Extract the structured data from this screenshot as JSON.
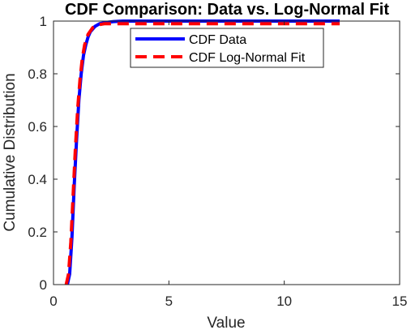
{
  "chart_data": {
    "type": "line",
    "title": "CDF Comparison: Data vs. Log-Normal Fit",
    "xlabel": "Value",
    "ylabel": "Cumulative Distribution",
    "xlim": [
      0,
      15
    ],
    "ylim": [
      0,
      1
    ],
    "xticks": [
      0,
      5,
      10,
      15
    ],
    "yticks": [
      0,
      0.2,
      0.4,
      0.6,
      0.8,
      1
    ],
    "x_tick_labels": [
      "0",
      "5",
      "10",
      "15"
    ],
    "y_tick_labels": [
      "0",
      "0.2",
      "0.4",
      "0.6",
      "0.8",
      "1"
    ],
    "grid": false,
    "legend_position": "top",
    "series": [
      {
        "name": "CDF Data",
        "color": "#0000ff",
        "style": "solid",
        "x": [
          0.6,
          0.7,
          0.8,
          0.9,
          1.0,
          1.1,
          1.2,
          1.3,
          1.4,
          1.5,
          1.6,
          1.8,
          2.0,
          2.3,
          2.6,
          3.0,
          3.5,
          4.0,
          5.0,
          6.0,
          7.0,
          8.0,
          9.0,
          10.0,
          11.0,
          12.0,
          12.4
        ],
        "y": [
          0.0,
          0.04,
          0.18,
          0.38,
          0.55,
          0.7,
          0.8,
          0.87,
          0.91,
          0.94,
          0.96,
          0.98,
          0.99,
          0.995,
          0.998,
          1.0,
          1.0,
          1.0,
          1.0,
          1.0,
          1.0,
          1.0,
          1.0,
          1.0,
          1.0,
          1.0,
          1.0
        ]
      },
      {
        "name": "CDF Log-Normal Fit",
        "color": "#ff0000",
        "style": "dashed",
        "x": [
          0.55,
          0.65,
          0.75,
          0.85,
          0.95,
          1.05,
          1.15,
          1.25,
          1.35,
          1.5,
          1.7,
          1.9,
          2.2,
          2.5,
          3.0,
          3.5,
          4.0,
          5.0,
          6.0,
          7.0,
          8.0,
          9.0,
          10.0,
          11.0,
          12.0,
          12.4
        ],
        "y": [
          0.0,
          0.04,
          0.16,
          0.34,
          0.52,
          0.67,
          0.78,
          0.86,
          0.91,
          0.95,
          0.975,
          0.985,
          0.99,
          0.99,
          0.99,
          0.99,
          0.99,
          0.99,
          0.99,
          0.99,
          0.99,
          0.99,
          0.99,
          0.99,
          0.99,
          0.99
        ]
      }
    ]
  }
}
